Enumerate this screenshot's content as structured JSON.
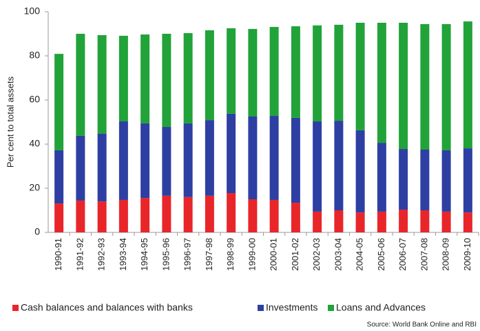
{
  "chart_data": {
    "type": "stacked_bar",
    "y_label": "Per cent to total assets",
    "source": "Source: World Bank Online and RBI",
    "categories": [
      "1990-91",
      "1991-92",
      "1992-93",
      "1993-94",
      "1994-95",
      "1995-96",
      "1996-97",
      "1997-98",
      "1998-99",
      "1999-00",
      "2000-01",
      "2001-02",
      "2002-03",
      "2003-04",
      "2004-05",
      "2005-06",
      "2006-07",
      "2007-08",
      "2008-09",
      "2009-10"
    ],
    "series": [
      {
        "name": "Cash balances and balances with banks",
        "color": "#e8262a",
        "values": [
          13.1,
          14.4,
          14.0,
          14.7,
          15.6,
          16.6,
          16.0,
          16.6,
          17.8,
          15.0,
          14.7,
          13.4,
          9.4,
          10.0,
          9.0,
          9.4,
          10.3,
          10.0,
          9.4,
          9.0
        ]
      },
      {
        "name": "Investments",
        "color": "#2e3fa3",
        "values": [
          24.1,
          29.4,
          30.7,
          35.6,
          33.8,
          31.2,
          33.4,
          34.3,
          36.0,
          37.5,
          38.1,
          38.5,
          40.9,
          40.6,
          37.3,
          31.2,
          27.5,
          27.5,
          27.8,
          29.1
        ]
      },
      {
        "name": "Loans and Advances",
        "color": "#21a339",
        "values": [
          43.7,
          46.2,
          44.7,
          38.8,
          40.3,
          42.2,
          40.9,
          40.7,
          38.7,
          39.7,
          40.3,
          41.5,
          43.5,
          43.5,
          48.7,
          54.4,
          57.2,
          56.9,
          57.2,
          57.5
        ]
      }
    ],
    "ylim": [
      0,
      100
    ],
    "yticks": [
      0,
      20,
      40,
      60,
      80,
      100
    ],
    "grid": false,
    "legend": "bottom"
  }
}
